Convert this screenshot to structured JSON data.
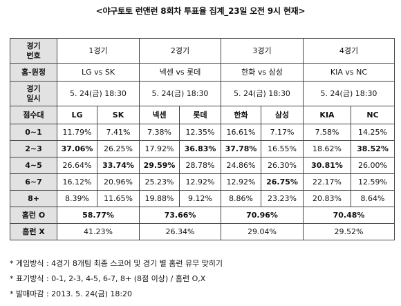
{
  "title": "<야구토토 런앤런 8회차 투표율 집계_23일 오전 9시 현재>",
  "game_header": {
    "line1": "경기",
    "line2": "번호"
  },
  "games": [
    "1경기",
    "2경기",
    "3경기",
    "4경기"
  ],
  "home_away_label": "홈-원정",
  "matchups": [
    "LG vs SK",
    "넥센 vs 롯데",
    "한화 vs 삼성",
    "KIA vs NC"
  ],
  "date_label": {
    "line1": "경기",
    "line2": "일시"
  },
  "dates": [
    "5. 24(금) 18:30",
    "5. 24(금) 18:30",
    "5. 24(금) 18:30",
    "5. 24(금) 18:30"
  ],
  "score_label": "점수대",
  "teams": [
    "LG",
    "SK",
    "넥센",
    "롯데",
    "한화",
    "삼성",
    "KIA",
    "NC"
  ],
  "rows": [
    {
      "label": "0~1",
      "values": [
        "11.79%",
        "7.41%",
        "7.38%",
        "12.35%",
        "16.61%",
        "7.17%",
        "7.58%",
        "14.25%"
      ],
      "bold": [
        false,
        false,
        false,
        false,
        false,
        false,
        false,
        false
      ]
    },
    {
      "label": "2~3",
      "values": [
        "37.06%",
        "26.25%",
        "17.92%",
        "36.83%",
        "37.78%",
        "16.55%",
        "18.62%",
        "38.52%"
      ],
      "bold": [
        true,
        false,
        false,
        true,
        true,
        false,
        false,
        true
      ]
    },
    {
      "label": "4~5",
      "values": [
        "26.64%",
        "33.74%",
        "29.59%",
        "28.78%",
        "24.86%",
        "26.30%",
        "30.81%",
        "26.00%"
      ],
      "bold": [
        false,
        true,
        true,
        false,
        false,
        false,
        true,
        false
      ]
    },
    {
      "label": "6~7",
      "values": [
        "16.12%",
        "20.96%",
        "25.23%",
        "12.92%",
        "12.92%",
        "26.75%",
        "22.17%",
        "12.59%"
      ],
      "bold": [
        false,
        false,
        false,
        false,
        false,
        true,
        false,
        false
      ]
    },
    {
      "label": "8+",
      "values": [
        "8.39%",
        "11.65%",
        "19.88%",
        "9.12%",
        "8.86%",
        "23.23%",
        "20.83%",
        "8.64%"
      ],
      "bold": [
        false,
        false,
        false,
        false,
        false,
        false,
        false,
        false
      ]
    }
  ],
  "homerun_o": {
    "label": "홈런 O",
    "values": [
      "58.77%",
      "73.66%",
      "70.96%",
      "70.48%"
    ]
  },
  "homerun_x": {
    "label": "홈런 X",
    "values": [
      "41.23%",
      "26.34%",
      "29.04%",
      "29.52%"
    ]
  },
  "notes": [
    "* 게임방식 : 4경기 8개팀 최종 스코어 및 경기 별 홈런 유무 맞히기",
    "* 표기방식 : 0-1, 2-3, 4-5, 6-7, 8+ (8점 이상) / 홈런 O,X",
    "* 발매마감 : 2013. 5. 24(금) 18:20"
  ]
}
